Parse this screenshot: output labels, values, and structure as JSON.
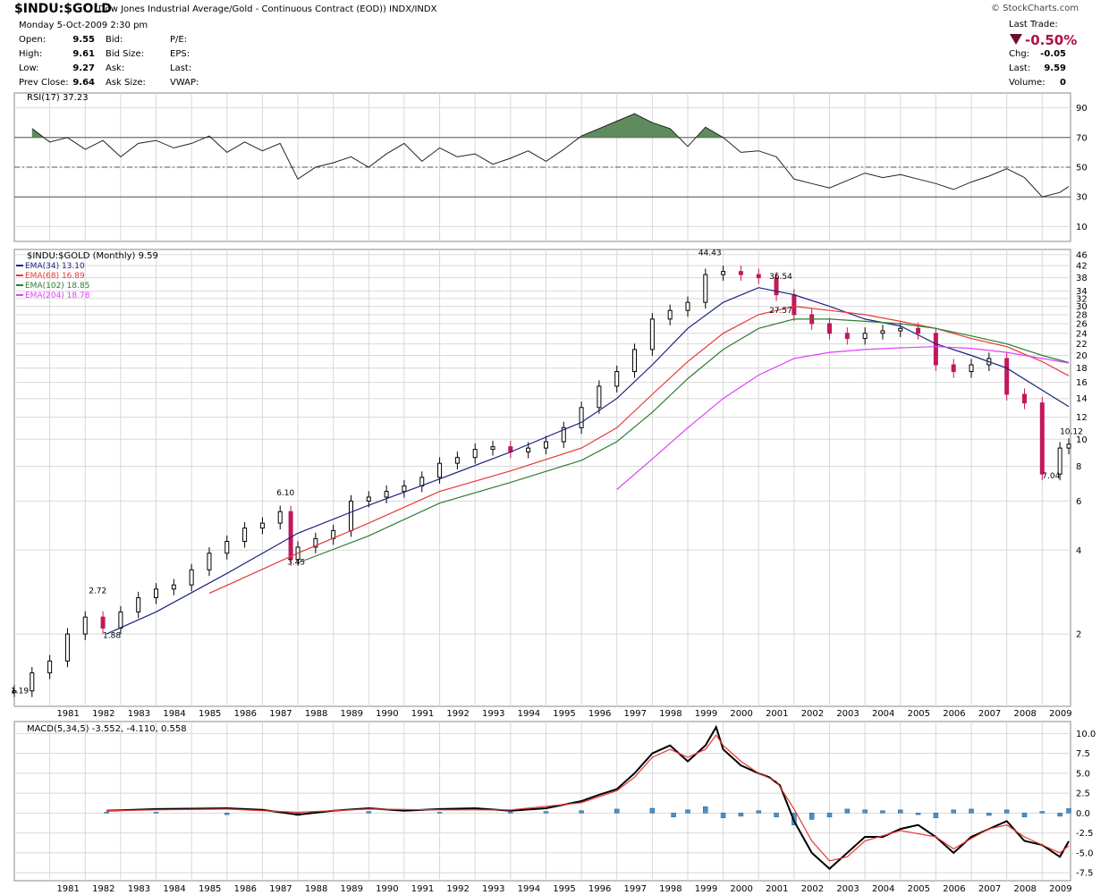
{
  "header": {
    "symbol": "$INDU:$GOLD",
    "description": "(Dow Jones Industrial Average/Gold - Continuous Contract (EOD)) INDX/INDX",
    "logo": "© StockCharts.com",
    "date": "Monday  5-Oct-2009  2:30 pm",
    "quotes": [
      {
        "label": "Open:",
        "value": "9.55",
        "label2": "Bid:",
        "label3": "P/E:"
      },
      {
        "label": "High:",
        "value": "9.61",
        "label2": "Bid Size:",
        "label3": "EPS:"
      },
      {
        "label": "Low:",
        "value": "9.27",
        "label2": "Ask:",
        "label3": "Last:"
      },
      {
        "label": "Prev Close:",
        "value": "9.64",
        "label2": "Ask Size:",
        "label3": "VWAP:"
      }
    ],
    "last_trade_label": "Last Trade:",
    "last_trade_change": "-0.50%",
    "right_stats": [
      {
        "label": "Chg:",
        "value": "-0.05"
      },
      {
        "label": "Last:",
        "value": "9.59"
      },
      {
        "label": "Volume:",
        "value": "0"
      }
    ]
  },
  "colors": {
    "ema34": "#1a237e",
    "ema68": "#e53935",
    "ema102": "#2e7d32",
    "ema204": "#e040fb",
    "rsi_fill": "#5e8c5e",
    "candle_down": "#c2185b",
    "macd": "#000000",
    "signal": "#e53935",
    "histogram": "#4a90c8",
    "grid": "#d8d8d8"
  },
  "chart_data": [
    {
      "type": "line",
      "title": "RSI(17) 37.23",
      "x_range": [
        1980.0,
        2009.8
      ],
      "ylim": [
        0,
        100
      ],
      "y_ticks": [
        10,
        30,
        50,
        70,
        90
      ],
      "reference_lines": [
        30,
        50,
        70
      ],
      "series": [
        {
          "name": "RSI(17)",
          "x": [
            1980.5,
            1981.0,
            1981.5,
            1982.0,
            1982.5,
            1983.0,
            1983.5,
            1984.0,
            1984.5,
            1985.0,
            1985.5,
            1986.0,
            1986.5,
            1987.0,
            1987.5,
            1988.0,
            1988.5,
            1989.0,
            1989.5,
            1990.0,
            1990.5,
            1991.0,
            1991.5,
            1992.0,
            1992.5,
            1993.0,
            1993.5,
            1994.0,
            1994.5,
            1995.0,
            1995.5,
            1996.0,
            1996.5,
            1997.0,
            1997.5,
            1998.0,
            1998.5,
            1999.0,
            1999.5,
            2000.0,
            2000.5,
            2001.0,
            2001.5,
            2002.0,
            2002.5,
            2003.0,
            2003.5,
            2004.0,
            2004.5,
            2005.0,
            2005.5,
            2006.0,
            2006.5,
            2007.0,
            2007.5,
            2008.0,
            2008.5,
            2009.0,
            2009.5,
            2009.75
          ],
          "y": [
            76,
            67,
            70,
            62,
            68,
            57,
            66,
            68,
            63,
            66,
            71,
            60,
            67,
            61,
            66,
            42,
            50,
            53,
            57,
            50,
            59,
            66,
            54,
            63,
            57,
            59,
            52,
            56,
            61,
            54,
            62,
            71,
            76,
            81,
            86,
            80,
            76,
            64,
            77,
            70,
            60,
            61,
            57,
            42,
            39,
            36,
            41,
            46,
            43,
            45,
            42,
            39,
            35,
            40,
            44,
            49,
            43,
            30,
            33,
            37
          ]
        }
      ]
    },
    {
      "type": "line",
      "title": "$INDU:$GOLD (Monthly) 9.59",
      "y_scale": "log",
      "x_range": [
        1980.0,
        2009.8
      ],
      "ylim": [
        1.1,
        48
      ],
      "y_ticks": [
        2,
        4,
        6,
        8,
        10,
        12,
        14,
        16,
        18,
        20,
        22,
        24,
        26,
        28,
        30,
        32,
        34,
        38,
        42,
        46
      ],
      "x_ticks": [
        "1981",
        "1982",
        "1983",
        "1984",
        "1985",
        "1986",
        "1987",
        "1988",
        "1989",
        "1990",
        "1991",
        "1992",
        "1993",
        "1994",
        "1995",
        "1996",
        "1997",
        "1998",
        "1999",
        "2000",
        "2001",
        "2002",
        "2003",
        "2004",
        "2005",
        "2006",
        "2007",
        "2008",
        "2009"
      ],
      "legend": [
        "EMA(34) 13.10",
        "EMA(68) 16.89",
        "EMA(102) 18.85",
        "EMA(204) 18.78"
      ],
      "annotations": [
        {
          "x": 1980.0,
          "y": 1.19,
          "text": "1.19"
        },
        {
          "x": 1982.2,
          "y": 2.72,
          "text": "2.72"
        },
        {
          "x": 1982.6,
          "y": 1.88,
          "text": "1.88"
        },
        {
          "x": 1987.5,
          "y": 6.1,
          "text": "6.10"
        },
        {
          "x": 1987.8,
          "y": 3.45,
          "text": "3.45"
        },
        {
          "x": 1999.4,
          "y": 44.43,
          "text": "44.43"
        },
        {
          "x": 2001.4,
          "y": 36.54,
          "text": "36.54"
        },
        {
          "x": 2001.4,
          "y": 27.57,
          "text": "27.57"
        },
        {
          "x": 2009.1,
          "y": 7.04,
          "text": "7.04"
        },
        {
          "x": 2009.6,
          "y": 10.12,
          "text": "10.12"
        }
      ],
      "series": [
        {
          "name": "$INDU:$GOLD",
          "x": [
            1980.0,
            1980.5,
            1981.0,
            1981.5,
            1982.0,
            1982.5,
            1983.0,
            1983.5,
            1984.0,
            1984.5,
            1985.0,
            1985.5,
            1986.0,
            1986.5,
            1987.0,
            1987.5,
            1987.8,
            1988.0,
            1988.5,
            1989.0,
            1989.5,
            1990.0,
            1990.5,
            1991.0,
            1991.5,
            1992.0,
            1992.5,
            1993.0,
            1993.5,
            1994.0,
            1994.5,
            1995.0,
            1995.5,
            1996.0,
            1996.5,
            1997.0,
            1997.5,
            1998.0,
            1998.5,
            1999.0,
            1999.5,
            2000.0,
            2000.5,
            2001.0,
            2001.5,
            2002.0,
            2002.5,
            2003.0,
            2003.5,
            2004.0,
            2004.5,
            2005.0,
            2005.5,
            2006.0,
            2006.5,
            2007.0,
            2007.5,
            2008.0,
            2008.5,
            2009.0,
            2009.5,
            2009.75
          ],
          "y": [
            1.25,
            1.45,
            1.6,
            2.0,
            2.3,
            2.1,
            2.4,
            2.7,
            2.9,
            3.0,
            3.4,
            3.9,
            4.3,
            4.8,
            5.0,
            5.5,
            3.7,
            4.1,
            4.4,
            4.7,
            6.0,
            6.2,
            6.5,
            6.8,
            7.3,
            8.2,
            8.6,
            9.2,
            9.4,
            9.0,
            9.3,
            9.8,
            11.0,
            13.0,
            15.5,
            17.5,
            21.0,
            27.0,
            29.0,
            31.0,
            39.0,
            40.0,
            39.0,
            38.0,
            33.0,
            28.0,
            26.0,
            24.0,
            23.0,
            24.0,
            24.5,
            25.0,
            24.0,
            18.5,
            17.5,
            18.5,
            19.5,
            14.5,
            13.5,
            7.5,
            9.3,
            9.6
          ]
        },
        {
          "name": "EMA(34)",
          "x": [
            1982.6,
            1984.0,
            1986.0,
            1988.0,
            1990.0,
            1992.0,
            1994.0,
            1996.0,
            1997.0,
            1998.0,
            1999.0,
            2000.0,
            2001.0,
            2002.0,
            2003.0,
            2004.0,
            2005.0,
            2006.0,
            2007.0,
            2008.0,
            2009.0,
            2009.75
          ],
          "y": [
            2.0,
            2.4,
            3.3,
            4.6,
            5.8,
            7.2,
            9.0,
            11.5,
            14.0,
            18.5,
            25.0,
            31.0,
            35.0,
            33.0,
            30.0,
            27.0,
            25.5,
            22.0,
            20.0,
            18.0,
            15.0,
            13.1
          ]
        },
        {
          "name": "EMA(68)",
          "x": [
            1985.5,
            1988.0,
            1990.0,
            1992.0,
            1994.0,
            1996.0,
            1997.0,
            1998.0,
            1999.0,
            2000.0,
            2001.0,
            2002.0,
            2003.0,
            2004.0,
            2005.0,
            2006.0,
            2007.0,
            2008.0,
            2009.0,
            2009.75
          ],
          "y": [
            2.8,
            3.9,
            5.0,
            6.5,
            7.7,
            9.3,
            11.0,
            14.5,
            19.0,
            24.0,
            28.0,
            30.0,
            29.0,
            28.0,
            26.5,
            25.0,
            23.0,
            21.5,
            19.0,
            16.9
          ]
        },
        {
          "name": "EMA(102)",
          "x": [
            1988.0,
            1990.0,
            1992.0,
            1994.0,
            1996.0,
            1997.0,
            1998.0,
            1999.0,
            2000.0,
            2001.0,
            2002.0,
            2003.0,
            2004.0,
            2005.0,
            2006.0,
            2007.0,
            2008.0,
            2009.0,
            2009.75
          ],
          "y": [
            3.6,
            4.5,
            5.9,
            7.0,
            8.4,
            9.8,
            12.5,
            16.5,
            21.0,
            25.0,
            27.0,
            27.0,
            26.5,
            26.0,
            25.0,
            23.5,
            22.0,
            20.0,
            18.85
          ]
        },
        {
          "name": "EMA(204)",
          "x": [
            1997.0,
            1998.0,
            1999.0,
            2000.0,
            2001.0,
            2002.0,
            2003.0,
            2004.0,
            2005.0,
            2006.0,
            2007.0,
            2008.0,
            2009.0,
            2009.75
          ],
          "y": [
            6.6,
            8.5,
            11.0,
            14.0,
            17.0,
            19.5,
            20.5,
            21.0,
            21.3,
            21.5,
            21.2,
            20.5,
            19.5,
            18.78
          ]
        }
      ]
    },
    {
      "type": "line",
      "title": "MACD(5,34,5) -3.552, -4.110, 0.558",
      "x_range": [
        1980.0,
        2009.8
      ],
      "ylim": [
        -8.5,
        11.5
      ],
      "y_ticks": [
        -7.5,
        -5.0,
        -2.5,
        0.0,
        2.5,
        5.0,
        7.5,
        10.0
      ],
      "x_ticks": [
        "1981",
        "1982",
        "1983",
        "1984",
        "1985",
        "1986",
        "1987",
        "1988",
        "1989",
        "1990",
        "1991",
        "1992",
        "1993",
        "1994",
        "1995",
        "1996",
        "1997",
        "1998",
        "1999",
        "2000",
        "2001",
        "2002",
        "2003",
        "2004",
        "2005",
        "2006",
        "2007",
        "2008",
        "2009"
      ],
      "series": [
        {
          "name": "MACD",
          "x": [
            1982.6,
            1984.0,
            1986.0,
            1987.0,
            1988.0,
            1989.0,
            1990.0,
            1991.0,
            1992.0,
            1993.0,
            1994.0,
            1995.0,
            1996.0,
            1996.5,
            1997.0,
            1997.5,
            1998.0,
            1998.5,
            1999.0,
            1999.5,
            1999.8,
            2000.0,
            2000.5,
            2001.0,
            2001.3,
            2001.6,
            2002.0,
            2002.5,
            2003.0,
            2003.5,
            2004.0,
            2004.5,
            2005.0,
            2005.5,
            2006.0,
            2006.5,
            2007.0,
            2007.5,
            2008.0,
            2008.5,
            2009.0,
            2009.5,
            2009.75
          ],
          "y": [
            0.3,
            0.5,
            0.6,
            0.4,
            -0.2,
            0.3,
            0.6,
            0.3,
            0.5,
            0.6,
            0.3,
            0.6,
            1.5,
            2.3,
            3.0,
            5.0,
            7.5,
            8.5,
            6.5,
            8.5,
            10.8,
            8.0,
            6.0,
            5.0,
            4.5,
            3.5,
            -1.0,
            -5.0,
            -7.0,
            -5.0,
            -3.0,
            -3.0,
            -2.0,
            -1.5,
            -3.0,
            -5.0,
            -3.0,
            -2.0,
            -1.0,
            -3.5,
            -4.0,
            -5.5,
            -3.55
          ]
        },
        {
          "name": "Signal",
          "x": [
            1982.6,
            1984.0,
            1986.0,
            1988.0,
            1990.0,
            1992.0,
            1994.0,
            1996.0,
            1997.0,
            1997.5,
            1998.0,
            1998.5,
            1999.0,
            1999.5,
            1999.8,
            2000.0,
            2000.5,
            2001.0,
            2001.5,
            2002.0,
            2002.5,
            2003.0,
            2003.5,
            2004.0,
            2005.0,
            2006.0,
            2006.5,
            2007.0,
            2007.5,
            2008.0,
            2008.5,
            2009.0,
            2009.5,
            2009.75
          ],
          "y": [
            0.3,
            0.4,
            0.5,
            0.1,
            0.5,
            0.4,
            0.4,
            1.3,
            2.8,
            4.5,
            7.0,
            8.0,
            7.0,
            8.0,
            9.8,
            8.5,
            6.5,
            5.0,
            4.0,
            0.5,
            -3.5,
            -6.0,
            -5.5,
            -3.5,
            -2.2,
            -3.0,
            -4.5,
            -3.2,
            -2.0,
            -1.5,
            -3.0,
            -4.0,
            -5.0,
            -4.11
          ]
        }
      ],
      "histogram": {
        "name": "Histogram",
        "x": [
          1982.6,
          1984.0,
          1986.0,
          1988.0,
          1990.0,
          1992.0,
          1994.0,
          1995.0,
          1996.0,
          1997.0,
          1998.0,
          1998.6,
          1999.0,
          1999.5,
          2000.0,
          2000.5,
          2001.0,
          2001.5,
          2002.0,
          2002.5,
          2003.0,
          2003.5,
          2004.0,
          2004.5,
          2005.0,
          2005.5,
          2006.0,
          2006.5,
          2007.0,
          2007.5,
          2008.0,
          2008.5,
          2009.0,
          2009.5,
          2009.75
        ],
        "y": [
          0.1,
          0.1,
          -0.2,
          -0.3,
          0.2,
          0.1,
          0.1,
          0.2,
          0.3,
          0.5,
          0.6,
          -0.5,
          0.4,
          0.8,
          -0.6,
          -0.4,
          0.3,
          -0.5,
          -1.5,
          -0.8,
          -0.5,
          0.5,
          0.4,
          0.3,
          0.4,
          -0.2,
          -0.6,
          0.4,
          0.5,
          -0.3,
          0.4,
          -0.5,
          0.2,
          -0.4,
          0.56
        ]
      }
    }
  ]
}
